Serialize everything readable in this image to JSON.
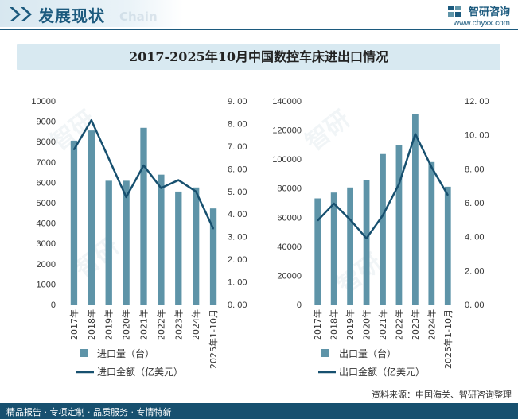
{
  "header": {
    "title": "发展现状",
    "brand_name": "智研咨询",
    "brand_url": "www.chyxx.com",
    "watermark_text": "Chain"
  },
  "chart_title": "2017-2025年10月中国数控车床进出口情况",
  "footer": {
    "left": "精品报告 · 专项定制 · 品质服务 · 专情特新",
    "source": "资料来源：中国海关、智研咨询整理"
  },
  "colors": {
    "bar": "#5e94a8",
    "line": "#17506f",
    "brand": "#1c5a7e",
    "footer_bg": "#17506f",
    "title_bg": "#d8e9f1"
  },
  "chart_data": [
    {
      "type": "bar",
      "categories": [
        "2017年",
        "2018年",
        "2019年",
        "2020年",
        "2021年",
        "2022年",
        "2023年",
        "2024年",
        "2025年1-10月"
      ],
      "series": [
        {
          "name": "进口量（台）",
          "kind": "bar",
          "axis": "left",
          "values": [
            8050,
            8550,
            6080,
            6080,
            8680,
            6380,
            5550,
            5750,
            4720
          ]
        },
        {
          "name": "进口金额（亿美元）",
          "kind": "line",
          "axis": "right",
          "values": [
            6.85,
            8.15,
            6.45,
            4.75,
            6.15,
            5.15,
            5.5,
            5.0,
            3.35
          ]
        }
      ],
      "y_left": {
        "ylim": [
          0,
          10000
        ],
        "ticks": [
          "0",
          "1000",
          "2000",
          "3000",
          "4000",
          "5000",
          "6000",
          "7000",
          "8000",
          "9000",
          "10000"
        ]
      },
      "y_right": {
        "ylim": [
          0,
          9
        ],
        "ticks": [
          "0. 00",
          "1. 00",
          "2. 00",
          "3. 00",
          "4. 00",
          "5. 00",
          "6. 00",
          "7. 00",
          "8. 00",
          "9. 00"
        ]
      },
      "legend": [
        "进口量（台）",
        "进口金额（亿美元）"
      ]
    },
    {
      "type": "bar",
      "categories": [
        "2017年",
        "2018年",
        "2019年",
        "2020年",
        "2021年",
        "2022年",
        "2023年",
        "2024年",
        "2025年1-10月"
      ],
      "series": [
        {
          "name": "出口量（台）",
          "kind": "bar",
          "axis": "left",
          "values": [
            73000,
            77000,
            80500,
            85500,
            103500,
            109500,
            131000,
            98000,
            81000
          ]
        },
        {
          "name": "出口金额（亿美元）",
          "kind": "line",
          "axis": "right",
          "values": [
            4.95,
            5.95,
            5.0,
            3.9,
            5.25,
            7.1,
            10.05,
            8.1,
            6.45
          ]
        }
      ],
      "y_left": {
        "ylim": [
          0,
          140000
        ],
        "ticks": [
          "0",
          "20000",
          "40000",
          "60000",
          "80000",
          "100000",
          "120000",
          "140000"
        ]
      },
      "y_right": {
        "ylim": [
          0,
          12
        ],
        "ticks": [
          "0. 00",
          "2. 00",
          "4. 00",
          "6. 00",
          "8. 00",
          "10. 00",
          "12. 00"
        ]
      },
      "legend": [
        "出口量（台）",
        "出口金额（亿美元）"
      ]
    }
  ]
}
